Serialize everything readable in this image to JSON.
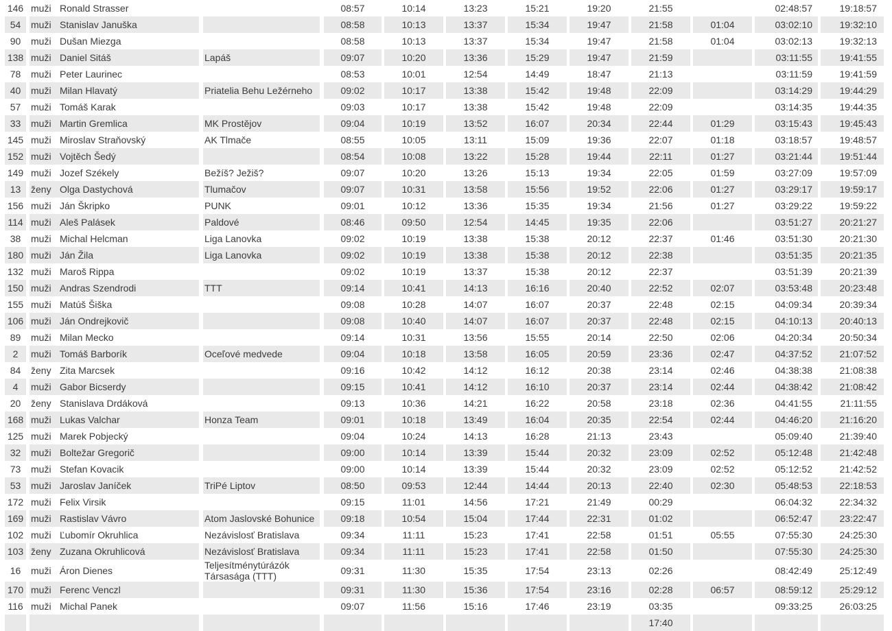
{
  "colors": {
    "row_stripe": "#e9e9e9",
    "row_plain": "#ffffff",
    "separator": "#ffffff",
    "text": "#3b3b3b"
  },
  "table": {
    "fields": [
      "bib",
      "gender",
      "name",
      "club",
      "split1",
      "split2",
      "split3",
      "split4",
      "split5",
      "split6",
      "split7",
      "finish",
      "total"
    ],
    "rows": [
      {
        "bib": "146",
        "gender": "muži",
        "name": "Ronald Strasser",
        "club": "",
        "split1": "08:57",
        "split2": "10:14",
        "split3": "13:23",
        "split4": "15:21",
        "split5": "19:20",
        "split6": "21:55",
        "split7": "",
        "finish": "02:48:57",
        "total": "19:18:57"
      },
      {
        "bib": "54",
        "gender": "muži",
        "name": "Stanislav Januška",
        "club": "",
        "split1": "08:58",
        "split2": "10:13",
        "split3": "13:37",
        "split4": "15:34",
        "split5": "19:47",
        "split6": "21:58",
        "split7": "01:04",
        "finish": "03:02:10",
        "total": "19:32:10"
      },
      {
        "bib": "90",
        "gender": "muži",
        "name": "Dušan Miezga",
        "club": "",
        "split1": "08:58",
        "split2": "10:13",
        "split3": "13:37",
        "split4": "15:34",
        "split5": "19:47",
        "split6": "21:58",
        "split7": "01:04",
        "finish": "03:02:13",
        "total": "19:32:13"
      },
      {
        "bib": "138",
        "gender": "muži",
        "name": "Daniel Sitáš",
        "club": "Lapáš",
        "split1": "09:07",
        "split2": "10:20",
        "split3": "13:36",
        "split4": "15:29",
        "split5": "19:47",
        "split6": "21:59",
        "split7": "",
        "finish": "03:11:55",
        "total": "19:41:55"
      },
      {
        "bib": "78",
        "gender": "muži",
        "name": "Peter Laurinec",
        "club": "",
        "split1": "08:53",
        "split2": "10:01",
        "split3": "12:54",
        "split4": "14:49",
        "split5": "18:47",
        "split6": "21:13",
        "split7": "",
        "finish": "03:11:59",
        "total": "19:41:59"
      },
      {
        "bib": "40",
        "gender": "muži",
        "name": "Milan Hlavatý",
        "club": "Priatelia Behu Ležérneho",
        "split1": "09:02",
        "split2": "10:17",
        "split3": "13:38",
        "split4": "15:42",
        "split5": "19:48",
        "split6": "22:09",
        "split7": "",
        "finish": "03:14:29",
        "total": "19:44:29"
      },
      {
        "bib": "57",
        "gender": "muži",
        "name": "Tomáš Karak",
        "club": "",
        "split1": "09:03",
        "split2": "10:17",
        "split3": "13:38",
        "split4": "15:42",
        "split5": "19:48",
        "split6": "22:09",
        "split7": "",
        "finish": "03:14:35",
        "total": "19:44:35"
      },
      {
        "bib": "33",
        "gender": "muži",
        "name": "Martin Gremlica",
        "club": "MK Prostějov",
        "split1": "09:04",
        "split2": "10:19",
        "split3": "13:52",
        "split4": "16:07",
        "split5": "20:34",
        "split6": "22:44",
        "split7": "01:29",
        "finish": "03:15:43",
        "total": "19:45:43"
      },
      {
        "bib": "145",
        "gender": "muži",
        "name": "Miroslav Straňovský",
        "club": "AK Tlmače",
        "split1": "08:55",
        "split2": "10:05",
        "split3": "13:11",
        "split4": "15:09",
        "split5": "19:36",
        "split6": "22:07",
        "split7": "01:18",
        "finish": "03:18:57",
        "total": "19:48:57"
      },
      {
        "bib": "152",
        "gender": "muži",
        "name": "Vojtěch Šedý",
        "club": "",
        "split1": "08:54",
        "split2": "10:08",
        "split3": "13:22",
        "split4": "15:28",
        "split5": "19:44",
        "split6": "22:11",
        "split7": "01:27",
        "finish": "03:21:44",
        "total": "19:51:44"
      },
      {
        "bib": "149",
        "gender": "muži",
        "name": "Jozef Székely",
        "club": "Bežíš? Ježiš?",
        "split1": "09:07",
        "split2": "10:20",
        "split3": "13:26",
        "split4": "15:13",
        "split5": "19:34",
        "split6": "22:05",
        "split7": "01:59",
        "finish": "03:27:09",
        "total": "19:57:09"
      },
      {
        "bib": "13",
        "gender": "ženy",
        "name": "Olga Dastychová",
        "club": "Tlumačov",
        "split1": "09:07",
        "split2": "10:31",
        "split3": "13:58",
        "split4": "15:56",
        "split5": "19:52",
        "split6": "22:06",
        "split7": "01:27",
        "finish": "03:29:17",
        "total": "19:59:17"
      },
      {
        "bib": "156",
        "gender": "muži",
        "name": "Ján Škripko",
        "club": "PUNK",
        "split1": "09:01",
        "split2": "10:12",
        "split3": "13:36",
        "split4": "15:35",
        "split5": "19:34",
        "split6": "21:56",
        "split7": "01:27",
        "finish": "03:29:22",
        "total": "19:59:22"
      },
      {
        "bib": "114",
        "gender": "muži",
        "name": "Aleš Palásek",
        "club": "Paldové",
        "split1": "08:46",
        "split2": "09:50",
        "split3": "12:54",
        "split4": "14:45",
        "split5": "19:35",
        "split6": "22:06",
        "split7": "",
        "finish": "03:51:27",
        "total": "20:21:27"
      },
      {
        "bib": "38",
        "gender": "muži",
        "name": "Michal Helcman",
        "club": "Liga Lanovka",
        "split1": "09:02",
        "split2": "10:19",
        "split3": "13:38",
        "split4": "15:38",
        "split5": "20:12",
        "split6": "22:37",
        "split7": "01:46",
        "finish": "03:51:30",
        "total": "20:21:30"
      },
      {
        "bib": "180",
        "gender": "muži",
        "name": "Ján Žila",
        "club": "Liga Lanovka",
        "split1": "09:02",
        "split2": "10:19",
        "split3": "13:38",
        "split4": "15:38",
        "split5": "20:12",
        "split6": "22:38",
        "split7": "",
        "finish": "03:51:35",
        "total": "20:21:35"
      },
      {
        "bib": "132",
        "gender": "muži",
        "name": "Maroš Rippa",
        "club": "",
        "split1": "09:02",
        "split2": "10:19",
        "split3": "13:37",
        "split4": "15:38",
        "split5": "20:12",
        "split6": "22:37",
        "split7": "",
        "finish": "03:51:39",
        "total": "20:21:39"
      },
      {
        "bib": "150",
        "gender": "muži",
        "name": "Andras Szendrodi",
        "club": "TTT",
        "split1": "09:14",
        "split2": "10:41",
        "split3": "14:13",
        "split4": "16:16",
        "split5": "20:40",
        "split6": "22:52",
        "split7": "02:07",
        "finish": "03:53:48",
        "total": "20:23:48"
      },
      {
        "bib": "155",
        "gender": "muži",
        "name": "Matúš Šiška",
        "club": "",
        "split1": "09:08",
        "split2": "10:28",
        "split3": "14:07",
        "split4": "16:07",
        "split5": "20:37",
        "split6": "22:48",
        "split7": "02:15",
        "finish": "04:09:34",
        "total": "20:39:34"
      },
      {
        "bib": "106",
        "gender": "muži",
        "name": "Ján Ondrejkovič",
        "club": "",
        "split1": "09:08",
        "split2": "10:40",
        "split3": "14:07",
        "split4": "16:07",
        "split5": "20:37",
        "split6": "22:48",
        "split7": "02:15",
        "finish": "04:10:13",
        "total": "20:40:13"
      },
      {
        "bib": "89",
        "gender": "muži",
        "name": "Milan Mecko",
        "club": "",
        "split1": "09:14",
        "split2": "10:31",
        "split3": "13:56",
        "split4": "15:55",
        "split5": "20:14",
        "split6": "22:50",
        "split7": "02:06",
        "finish": "04:20:34",
        "total": "20:50:34"
      },
      {
        "bib": "2",
        "gender": "muži",
        "name": "Tomáš Barborík",
        "club": "Oceľové medvede",
        "split1": "09:04",
        "split2": "10:18",
        "split3": "13:58",
        "split4": "16:05",
        "split5": "20:59",
        "split6": "23:36",
        "split7": "02:47",
        "finish": "04:37:52",
        "total": "21:07:52"
      },
      {
        "bib": "84",
        "gender": "ženy",
        "name": "Zita Marcsek",
        "club": "",
        "split1": "09:16",
        "split2": "10:42",
        "split3": "14:12",
        "split4": "16:12",
        "split5": "20:38",
        "split6": "23:14",
        "split7": "02:46",
        "finish": "04:38:38",
        "total": "21:08:38"
      },
      {
        "bib": "4",
        "gender": "muži",
        "name": "Gabor Bicserdy",
        "club": "",
        "split1": "09:15",
        "split2": "10:41",
        "split3": "14:12",
        "split4": "16:10",
        "split5": "20:37",
        "split6": "23:14",
        "split7": "02:44",
        "finish": "04:38:42",
        "total": "21:08:42"
      },
      {
        "bib": "20",
        "gender": "ženy",
        "name": "Stanislava Drdáková",
        "club": "",
        "split1": "09:13",
        "split2": "10:36",
        "split3": "14:21",
        "split4": "16:22",
        "split5": "20:58",
        "split6": "23:18",
        "split7": "02:36",
        "finish": "04:41:55",
        "total": "21:11:55"
      },
      {
        "bib": "168",
        "gender": "muži",
        "name": "Lukas Valchar",
        "club": "Honza Team",
        "split1": "09:01",
        "split2": "10:18",
        "split3": "13:49",
        "split4": "16:04",
        "split5": "20:35",
        "split6": "22:54",
        "split7": "02:44",
        "finish": "04:46:20",
        "total": "21:16:20"
      },
      {
        "bib": "125",
        "gender": "muži",
        "name": "Marek Pobjecký",
        "club": "",
        "split1": "09:04",
        "split2": "10:24",
        "split3": "14:13",
        "split4": "16:28",
        "split5": "21:13",
        "split6": "23:43",
        "split7": "",
        "finish": "05:09:40",
        "total": "21:39:40"
      },
      {
        "bib": "32",
        "gender": "muži",
        "name": "Boltežar Gregorič",
        "club": "",
        "split1": "09:00",
        "split2": "10:14",
        "split3": "13:39",
        "split4": "15:44",
        "split5": "20:32",
        "split6": "23:09",
        "split7": "02:52",
        "finish": "05:12:48",
        "total": "21:42:48"
      },
      {
        "bib": "73",
        "gender": "muži",
        "name": "Stefan Kovacik",
        "club": "",
        "split1": "09:00",
        "split2": "10:14",
        "split3": "13:39",
        "split4": "15:44",
        "split5": "20:32",
        "split6": "23:09",
        "split7": "02:52",
        "finish": "05:12:52",
        "total": "21:42:52"
      },
      {
        "bib": "53",
        "gender": "muži",
        "name": "Jaroslav Janíček",
        "club": "TriPé Liptov",
        "split1": "08:50",
        "split2": "09:53",
        "split3": "12:44",
        "split4": "14:44",
        "split5": "20:13",
        "split6": "22:40",
        "split7": "02:30",
        "finish": "05:48:53",
        "total": "22:18:53"
      },
      {
        "bib": "172",
        "gender": "muži",
        "name": "Felix Virsik",
        "club": "",
        "split1": "09:15",
        "split2": "11:01",
        "split3": "14:56",
        "split4": "17:21",
        "split5": "21:49",
        "split6": "00:29",
        "split7": "",
        "finish": "06:04:32",
        "total": "22:34:32"
      },
      {
        "bib": "169",
        "gender": "muži",
        "name": "Rastislav Vávro",
        "club": "Atom Jaslovské Bohunice",
        "split1": "09:18",
        "split2": "10:54",
        "split3": "15:04",
        "split4": "17:44",
        "split5": "22:31",
        "split6": "01:02",
        "split7": "",
        "finish": "06:52:47",
        "total": "23:22:47"
      },
      {
        "bib": "102",
        "gender": "muži",
        "name": "Ľubomír Okruhlica",
        "club": "Nezávislosť Bratislava",
        "split1": "09:34",
        "split2": "11:11",
        "split3": "15:23",
        "split4": "17:41",
        "split5": "22:58",
        "split6": "01:51",
        "split7": "05:55",
        "finish": "07:55:30",
        "total": "24:25:30"
      },
      {
        "bib": "103",
        "gender": "ženy",
        "name": "Zuzana Okruhlicová",
        "club": "Nezávislosť Bratislava",
        "split1": "09:34",
        "split2": "11:11",
        "split3": "15:23",
        "split4": "17:41",
        "split5": "22:58",
        "split6": "01:50",
        "split7": "",
        "finish": "07:55:30",
        "total": "24:25:30"
      },
      {
        "bib": "16",
        "gender": "muži",
        "name": "Áron Dienes",
        "club": "Teljesítménytúrázók Társasága (TTT)",
        "split1": "09:31",
        "split2": "11:30",
        "split3": "15:35",
        "split4": "17:54",
        "split5": "23:13",
        "split6": "02:26",
        "split7": "",
        "finish": "08:42:49",
        "total": "25:12:49"
      },
      {
        "bib": "170",
        "gender": "muži",
        "name": "Ferenc Venczl",
        "club": "",
        "split1": "09:31",
        "split2": "11:30",
        "split3": "15:36",
        "split4": "17:54",
        "split5": "23:16",
        "split6": "02:28",
        "split7": "06:57",
        "finish": "08:59:12",
        "total": "25:29:12"
      },
      {
        "bib": "116",
        "gender": "muži",
        "name": "Michal Panek",
        "club": "",
        "split1": "09:07",
        "split2": "11:56",
        "split3": "15:16",
        "split4": "17:46",
        "split5": "23:19",
        "split6": "03:35",
        "split7": "",
        "finish": "09:33:25",
        "total": "26:03:25"
      },
      {
        "bib": "",
        "gender": "",
        "name": "",
        "club": "",
        "split1": "",
        "split2": "",
        "split3": "",
        "split4": "",
        "split5": "",
        "split6": "17:40",
        "split7": "",
        "finish": "",
        "total": ""
      }
    ]
  }
}
